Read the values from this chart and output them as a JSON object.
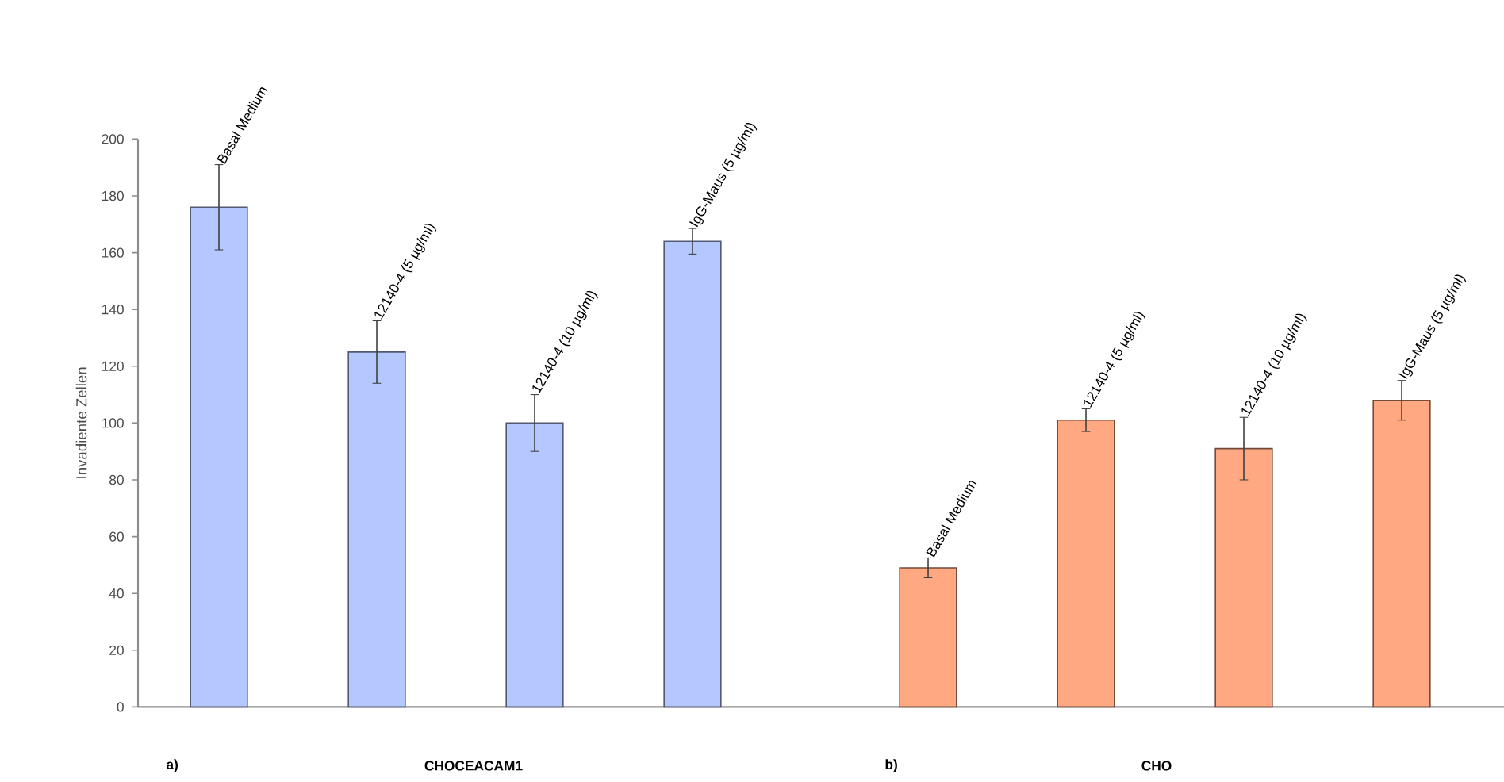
{
  "chart_data": [
    {
      "type": "bar",
      "xlabel": "CHOCEACAM1",
      "ylabel": "Invadiente Zellen",
      "annotations": [
        "a)"
      ],
      "categories": [
        "Basal Medium",
        "12140-4 (5 µg/ml)",
        "12140-4 (10 µg/ml)",
        "IgG-Maus (5 µg/ml)"
      ],
      "values": [
        176,
        125,
        100,
        164
      ],
      "errors": [
        15,
        11,
        10,
        4.5
      ],
      "color": "#b4c8ff",
      "ylim": [
        0,
        200
      ],
      "yticks": [
        0,
        20,
        40,
        60,
        80,
        100,
        120,
        140,
        160,
        180,
        200
      ]
    },
    {
      "type": "bar",
      "xlabel": "CHO",
      "annotations": [
        "b)"
      ],
      "categories": [
        "Basal Medium",
        "12140-4 (5 µg/ml)",
        "12140-4 (10 µg/ml)",
        "IgG-Maus (5 µg/ml)"
      ],
      "values": [
        49,
        101,
        91,
        108
      ],
      "errors": [
        3.5,
        4,
        11,
        7
      ],
      "color": "#ffa882",
      "ylim": [
        0,
        200
      ],
      "tick_labels": "x"
    }
  ]
}
